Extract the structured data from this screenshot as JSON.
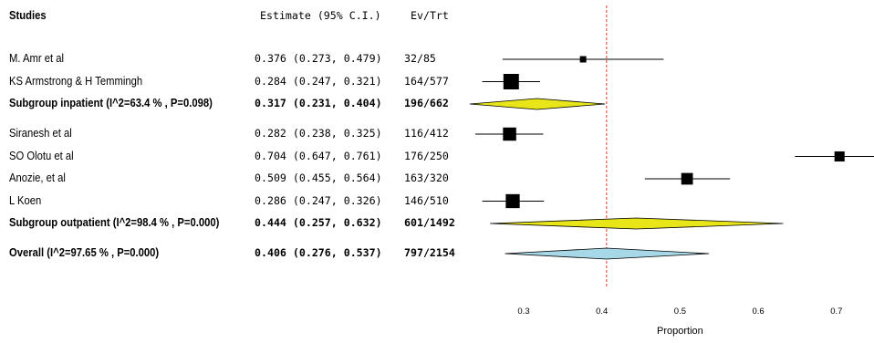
{
  "headers": {
    "studies": "Studies",
    "estimate": "Estimate (95% C.I.)",
    "ev_trt": "Ev/Trt"
  },
  "colors": {
    "inpatient_diamond": "#e8e619",
    "outpatient_diamond": "#e8e619",
    "overall_diamond": "#a6d8e7",
    "reference_line": "#e0392b",
    "marker": "#000000"
  },
  "chart_data": {
    "type": "forest",
    "xlabel": "Proportion",
    "xlim": [
      0.2,
      0.75
    ],
    "xticks": [
      "0.3",
      "0.4",
      "0.5",
      "0.6",
      "0.7"
    ],
    "reference_line": 0.406,
    "rows": [
      {
        "kind": "study",
        "label": "M. Amr et al",
        "estimate": 0.376,
        "ci": [
          0.273,
          0.479
        ],
        "est_text": "0.376 (0.273, 0.479)",
        "evtrt": "32/85",
        "weight": 0.35
      },
      {
        "kind": "study",
        "label": "KS Armstrong & H Temmingh",
        "estimate": 0.284,
        "ci": [
          0.247,
          0.321
        ],
        "est_text": "0.284 (0.247, 0.321)",
        "evtrt": "164/577",
        "weight": 1.0
      },
      {
        "kind": "subgroup",
        "label": "Subgroup inpatient (I^2=63.4 % , P=0.098)",
        "estimate": 0.317,
        "ci": [
          0.231,
          0.404
        ],
        "est_text": "0.317 (0.231, 0.404)",
        "evtrt": "196/662",
        "diamond": "inpatient_diamond"
      },
      {
        "kind": "gap"
      },
      {
        "kind": "study",
        "label": "Siranesh et al",
        "estimate": 0.282,
        "ci": [
          0.238,
          0.325
        ],
        "est_text": "0.282 (0.238, 0.325)",
        "evtrt": "116/412",
        "weight": 0.85
      },
      {
        "kind": "study",
        "label": "SO Olotu et al",
        "estimate": 0.704,
        "ci": [
          0.647,
          0.761
        ],
        "est_text": "0.704 (0.647, 0.761)",
        "evtrt": "176/250",
        "weight": 0.65
      },
      {
        "kind": "study",
        "label": "Anozie, et al",
        "estimate": 0.509,
        "ci": [
          0.455,
          0.564
        ],
        "est_text": "0.509 (0.455, 0.564)",
        "evtrt": "163/320",
        "weight": 0.75
      },
      {
        "kind": "study",
        "label": "L Koen",
        "estimate": 0.286,
        "ci": [
          0.247,
          0.326
        ],
        "est_text": "0.286 (0.247, 0.326)",
        "evtrt": "146/510",
        "weight": 0.9
      },
      {
        "kind": "subgroup",
        "label": "Subgroup outpatient (I^2=98.4 % , P=0.000)",
        "estimate": 0.444,
        "ci": [
          0.257,
          0.632
        ],
        "est_text": "0.444 (0.257, 0.632)",
        "evtrt": "601/1492",
        "diamond": "outpatient_diamond"
      },
      {
        "kind": "gap"
      },
      {
        "kind": "overall",
        "label": "Overall (I^2=97.65 % , P=0.000)",
        "estimate": 0.406,
        "ci": [
          0.276,
          0.537
        ],
        "est_text": "0.406 (0.276, 0.537)",
        "evtrt": "797/2154",
        "diamond": "overall_diamond"
      }
    ]
  }
}
